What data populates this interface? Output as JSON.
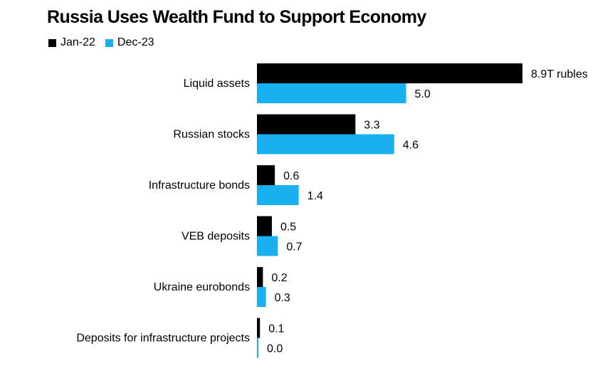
{
  "chart_data": {
    "type": "bar",
    "orientation": "horizontal",
    "title": "Russia Uses Wealth Fund to Support Economy",
    "xlabel": "",
    "ylabel": "",
    "unit_suffix_first_label": "T rubles",
    "categories": [
      "Liquid assets",
      "Russian stocks",
      "Infrastructure bonds",
      "VEB deposits",
      "Ukraine eurobonds",
      "Deposits for infrastructure projects"
    ],
    "series": [
      {
        "name": "Jan-22",
        "color": "#000000",
        "values": [
          8.9,
          3.3,
          0.6,
          0.5,
          0.2,
          0.1
        ],
        "labels": [
          "8.9T rubles",
          "3.3",
          "0.6",
          "0.5",
          "0.2",
          "0.1"
        ]
      },
      {
        "name": "Dec-23",
        "color": "#1ab0f0",
        "values": [
          5.0,
          4.6,
          1.4,
          0.7,
          0.3,
          0.0
        ],
        "labels": [
          "5.0",
          "4.6",
          "1.4",
          "0.7",
          "0.3",
          "0.0"
        ]
      }
    ],
    "xlim": [
      0,
      8.9
    ],
    "grid": false,
    "legend_position": "top-left"
  }
}
